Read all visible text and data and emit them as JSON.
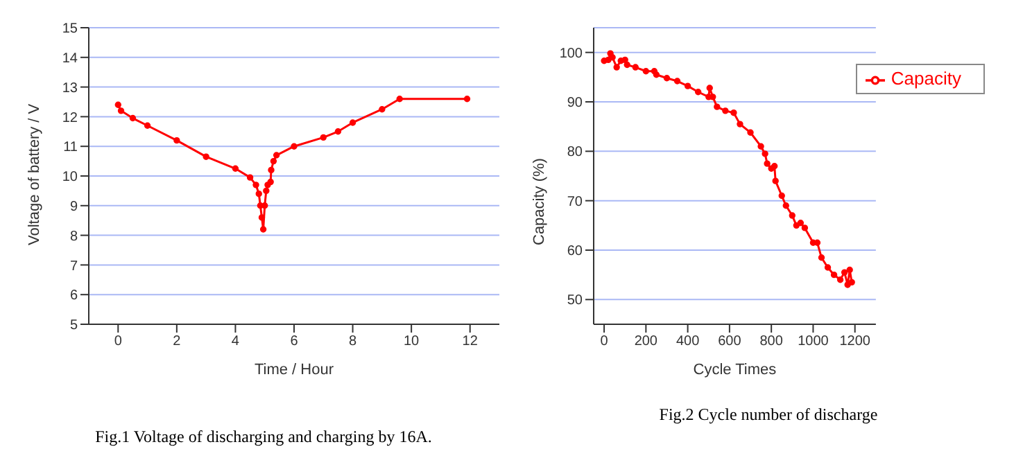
{
  "chart_data": [
    {
      "type": "line",
      "title": "Fig.1 Voltage of discharging and charging by 16A.",
      "xlabel": "Time / Hour",
      "ylabel": "Voltage of battery / V",
      "xlim": [
        -1,
        13
      ],
      "xticks": [
        0,
        2,
        4,
        6,
        8,
        10,
        12
      ],
      "ylim": [
        5,
        15
      ],
      "yticks": [
        5,
        6,
        7,
        8,
        9,
        10,
        11,
        12,
        13,
        14,
        15
      ],
      "grid": "y",
      "legend": false,
      "marker": "circle",
      "color": "#ff0000",
      "x": [
        0,
        0.1,
        0.5,
        1,
        2,
        3,
        4,
        4.5,
        4.7,
        4.8,
        4.85,
        4.9,
        4.95,
        5.0,
        5.05,
        5.1,
        5.2,
        5.22,
        5.3,
        5.4,
        6,
        7,
        7.5,
        8,
        9,
        9.6,
        11.9
      ],
      "values": [
        12.4,
        12.2,
        11.95,
        11.7,
        11.2,
        10.65,
        10.25,
        9.95,
        9.7,
        9.4,
        9.0,
        8.6,
        8.2,
        9.0,
        9.5,
        9.7,
        9.8,
        10.2,
        10.5,
        10.7,
        11.0,
        11.3,
        11.5,
        11.8,
        12.25,
        12.6,
        12.6
      ]
    },
    {
      "type": "line",
      "title": "Fig.2 Cycle number of discharge",
      "xlabel": "Cycle Times",
      "ylabel": "Capacity (%)",
      "xlim": [
        -50,
        1300
      ],
      "xticks": [
        0,
        200,
        400,
        600,
        800,
        1000,
        1200
      ],
      "ylim": [
        45,
        105
      ],
      "yticks": [
        50,
        60,
        70,
        80,
        90,
        100
      ],
      "grid": "y",
      "legend": "top right",
      "marker": "circle",
      "x": [
        0,
        20,
        30,
        40,
        60,
        80,
        100,
        110,
        150,
        200,
        240,
        250,
        300,
        350,
        400,
        450,
        500,
        505,
        520,
        540,
        580,
        620,
        650,
        700,
        750,
        770,
        780,
        800,
        815,
        820,
        850,
        870,
        900,
        920,
        940,
        960,
        1000,
        1020,
        1040,
        1070,
        1100,
        1130,
        1150,
        1165,
        1175,
        1185
      ],
      "series": [
        {
          "name": "Capacity",
          "color": "#ff0000",
          "values": [
            98.3,
            98.5,
            99.8,
            99,
            97,
            98.3,
            98.5,
            97.5,
            97,
            96.2,
            96.2,
            95.5,
            94.8,
            94.2,
            93.2,
            92,
            91,
            92.8,
            91,
            89,
            88.2,
            87.8,
            85.5,
            83.8,
            81,
            79.5,
            77.5,
            76.5,
            77,
            74,
            71,
            69,
            67,
            65,
            65.5,
            64.5,
            61.5,
            61.5,
            58.5,
            56.5,
            55,
            54,
            55.5,
            53,
            56,
            53.5
          ]
        }
      ]
    }
  ]
}
